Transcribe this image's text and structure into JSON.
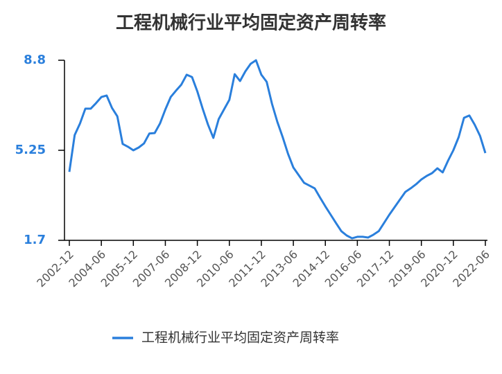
{
  "chart_data": {
    "type": "line",
    "title": "工程机械行业平均固定资产周转率",
    "categories": [
      "2002-12",
      null,
      null,
      null,
      null,
      null,
      "2004-06",
      null,
      null,
      null,
      null,
      null,
      "2005-12",
      null,
      null,
      null,
      null,
      null,
      "2007-06",
      null,
      null,
      null,
      null,
      null,
      "2008-12",
      null,
      null,
      null,
      null,
      null,
      "2010-06",
      null,
      null,
      null,
      null,
      null,
      "2011-12",
      null,
      null,
      null,
      null,
      null,
      "2013-06",
      null,
      null,
      null,
      null,
      null,
      "2014-12",
      null,
      null,
      null,
      null,
      null,
      "2016-06",
      null,
      null,
      null,
      null,
      null,
      "2017-12",
      null,
      null,
      null,
      null,
      null,
      "2019-06",
      null,
      null,
      null,
      null,
      null,
      "2020-12",
      null,
      null,
      null,
      null,
      null,
      "2022-06"
    ],
    "series": [
      {
        "name": "工程机械行业平均固定资产周转率",
        "color": "#2a7fdc",
        "values": [
          4.4,
          5.85,
          6.31,
          6.89,
          6.89,
          7.11,
          7.35,
          7.41,
          6.92,
          6.59,
          5.5,
          5.39,
          5.25,
          5.36,
          5.52,
          5.91,
          5.93,
          6.31,
          6.86,
          7.35,
          7.6,
          7.84,
          8.23,
          8.14,
          7.57,
          6.89,
          6.26,
          5.74,
          6.48,
          6.86,
          7.24,
          8.25,
          7.98,
          8.36,
          8.66,
          8.8,
          8.23,
          7.95,
          7.08,
          6.37,
          5.77,
          5.11,
          4.57,
          4.27,
          3.97,
          3.86,
          3.75,
          3.39,
          3.04,
          2.71,
          2.38,
          2.06,
          1.89,
          1.78,
          1.84,
          1.84,
          1.81,
          1.92,
          2.06,
          2.38,
          2.71,
          3.01,
          3.31,
          3.61,
          3.75,
          3.91,
          4.1,
          4.24,
          4.35,
          4.54,
          4.38,
          4.84,
          5.25,
          5.77,
          6.53,
          6.62,
          6.26,
          5.82,
          5.14
        ]
      }
    ],
    "ylim": [
      1.7,
      8.8
    ],
    "yticks": [
      1.7,
      5.25,
      8.8
    ],
    "grid": false,
    "legend": "bottom"
  }
}
